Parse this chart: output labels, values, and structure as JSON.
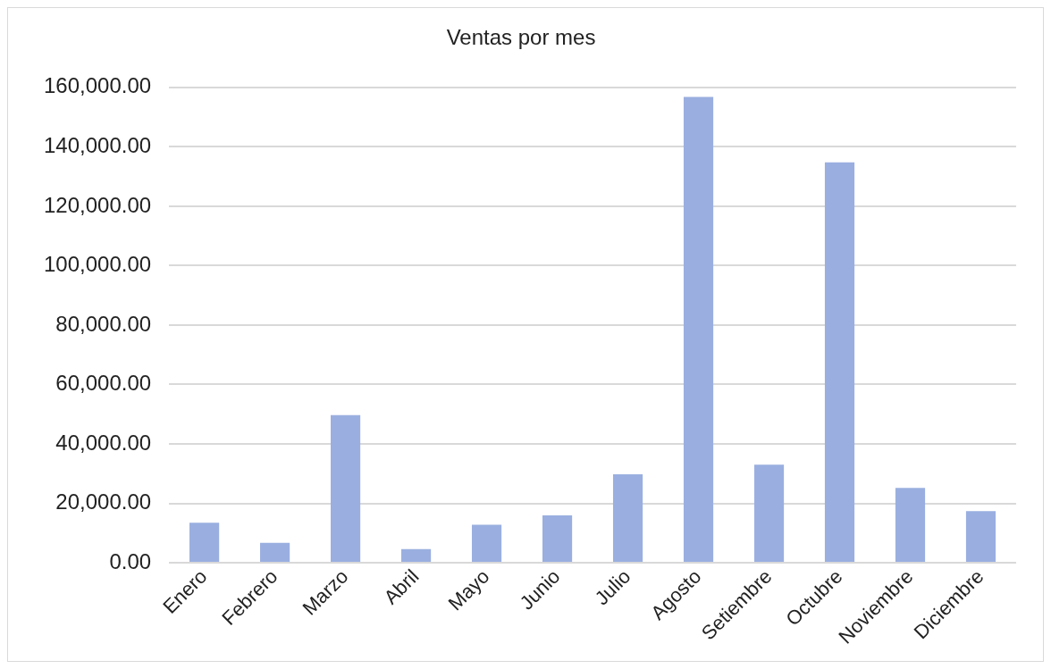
{
  "chart_data": {
    "type": "bar",
    "title": "Ventas por mes",
    "categories": [
      "Enero",
      "Febrero",
      "Marzo",
      "Abril",
      "Mayo",
      "Junio",
      "Julio",
      "Agosto",
      "Setiembre",
      "Octubre",
      "Noviembre",
      "Diciembre"
    ],
    "values": [
      13500,
      6700,
      49700,
      4600,
      12800,
      16000,
      29800,
      156800,
      33000,
      134800,
      25200,
      17400
    ],
    "color": "#9aafe0",
    "ylim": [
      0,
      160000
    ],
    "yticks": [
      {
        "value": 0,
        "label": "0.00"
      },
      {
        "value": 20000,
        "label": "20,000.00"
      },
      {
        "value": 40000,
        "label": "40,000.00"
      },
      {
        "value": 60000,
        "label": "60,000.00"
      },
      {
        "value": 80000,
        "label": "80,000.00"
      },
      {
        "value": 100000,
        "label": "100,000.00"
      },
      {
        "value": 120000,
        "label": "120,000.00"
      },
      {
        "value": 140000,
        "label": "140,000.00"
      },
      {
        "value": 160000,
        "label": "160,000.00"
      }
    ],
    "grid": "y",
    "legend": false
  }
}
